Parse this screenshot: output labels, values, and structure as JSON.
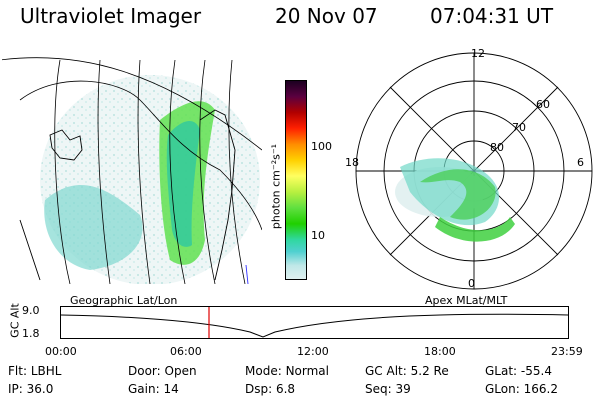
{
  "header": {
    "title": "Ultraviolet Imager",
    "date": "20 Nov 07",
    "time": "07:04:31 UT"
  },
  "colorbar": {
    "unit_label": "photon cm⁻²s⁻¹",
    "ticks": [
      "100",
      "10"
    ],
    "colors": [
      "#1a0020",
      "#5a0040",
      "#b00000",
      "#ff2000",
      "#ff8c00",
      "#ffd000",
      "#ffff60",
      "#b8f040",
      "#60e040",
      "#20d000",
      "#30d8a0",
      "#50d0d0",
      "#c0e8e8",
      "#e0f0f0"
    ]
  },
  "map_labels": {
    "left": "Geographic Lat/Lon",
    "right": "Apex MLat/MLT"
  },
  "polar_plot": {
    "mlt_labels": [
      "12",
      "18",
      "6",
      "0"
    ],
    "lat_labels": [
      "60",
      "70",
      "80"
    ]
  },
  "orbit_plot": {
    "y_axis_label": "GC Alt",
    "y_ticks": [
      "9.0",
      "1.8"
    ],
    "x_ticks": [
      "00:00",
      "06:00",
      "12:00",
      "18:00",
      "23:59"
    ],
    "marker_color": "#e00000"
  },
  "status": {
    "row1": [
      {
        "key": "Flt:",
        "val": "LBHL"
      },
      {
        "key": "Door:",
        "val": "Open"
      },
      {
        "key": "Mode:",
        "val": "Normal"
      },
      {
        "key": "GC Alt:",
        "val": "5.2 Re"
      },
      {
        "key": "GLat:",
        "val": "-55.4"
      }
    ],
    "row2": [
      {
        "key": "IP:",
        "val": "36.0"
      },
      {
        "key": "Gain:",
        "val": "14"
      },
      {
        "key": "Dsp:",
        "val": "6.8"
      },
      {
        "key": "Seq:",
        "val": "39"
      },
      {
        "key": "GLon:",
        "val": "166.2"
      }
    ]
  }
}
